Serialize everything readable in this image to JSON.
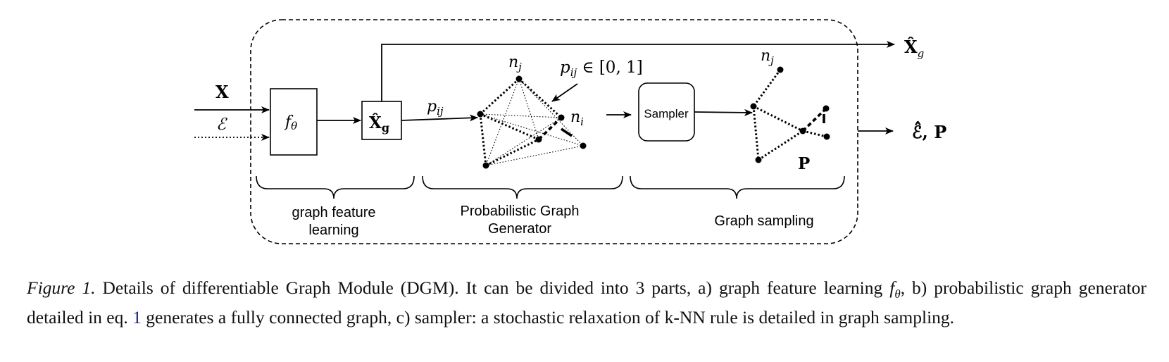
{
  "diagram": {
    "inputs": {
      "x_label": "X",
      "e_label": "ℰ"
    },
    "f_box_label": "f",
    "f_box_sub": "θ",
    "xg_box_label": "X̂",
    "xg_box_sub": "g",
    "pij_edge_label": "p",
    "pij_edge_sub": "ij",
    "pij_annotation": "p",
    "pij_annotation_sub": "ij",
    "pij_annotation_rest": " ∈ [0, 1]",
    "nj_label": "n",
    "nj_sub": "j",
    "ni_label": "n",
    "ni_sub": "i",
    "sampler_label": "Sampler",
    "nj2_label": "n",
    "nj2_sub": "j",
    "p_label": "P",
    "output_xg_label": "X̂",
    "output_xg_sub": "g",
    "output_ep_label": "ℰ̂, P",
    "section_labels": {
      "graph_feature_learning_line1": "graph feature",
      "graph_feature_learning_line2": "learning",
      "probabilistic_line1": "Probabilistic Graph",
      "probabilistic_line2": "Generator",
      "graph_sampling": "Graph sampling"
    }
  },
  "caption": {
    "figure_label": "Figure 1.",
    "text_part1": " Details of differentiable Graph Module (DGM). It can be divided into 3 parts, a) graph feature learning ",
    "f_symbol": "f",
    "f_sub": "θ",
    "text_part2": ", b) probabilistic graph generator detailed in eq. ",
    "eq_ref": "1",
    "text_part3": " generates a fully connected graph, c) sampler: a stochastic relaxation of k-NN rule is detailed in graph sampling."
  }
}
